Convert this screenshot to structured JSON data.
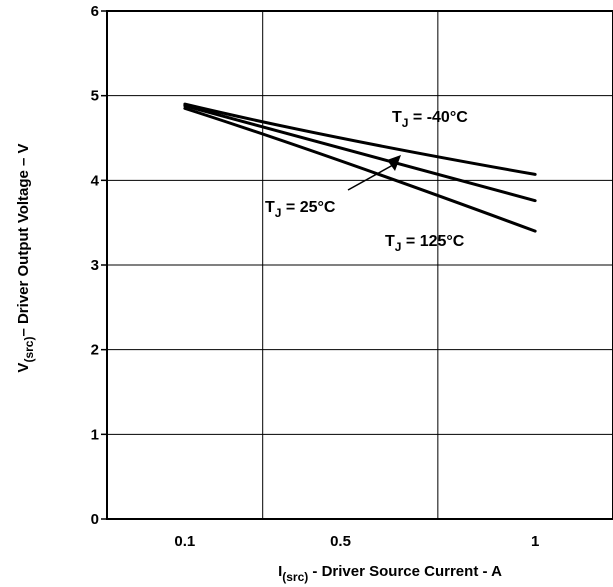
{
  "chart_data": {
    "type": "line",
    "title": "",
    "xlabel": {
      "main": "I",
      "sub": "(src)",
      "rest": " - Driver Source Current - A"
    },
    "ylabel": {
      "main": "V",
      "sub": "(src)",
      "rest": "– Driver Output Voltage – V"
    },
    "x_ticks": [
      {
        "value": 0.1,
        "label": "0.1"
      },
      {
        "value": 0.5,
        "label": "0.5"
      },
      {
        "value": 1,
        "label": "1"
      }
    ],
    "y_ticks": [
      0,
      1,
      2,
      3,
      4,
      5,
      6
    ],
    "xlim": [
      -0.1,
      1.2
    ],
    "ylim": [
      0,
      6
    ],
    "grid": true,
    "series": [
      {
        "name": {
          "main": "T",
          "sub": "J",
          "rest": " = -40°C"
        },
        "x": [
          0.1,
          0.5,
          1.0
        ],
        "y": [
          4.9,
          4.5,
          4.07
        ]
      },
      {
        "name": {
          "main": "T",
          "sub": "J",
          "rest": " = 25°C"
        },
        "x": [
          0.1,
          0.5,
          1.0
        ],
        "y": [
          4.88,
          4.38,
          3.76
        ]
      },
      {
        "name": {
          "main": "T",
          "sub": "J",
          "rest": " = 125°C"
        },
        "x": [
          0.1,
          0.5,
          1.0
        ],
        "y": [
          4.85,
          4.23,
          3.4
        ]
      }
    ]
  }
}
